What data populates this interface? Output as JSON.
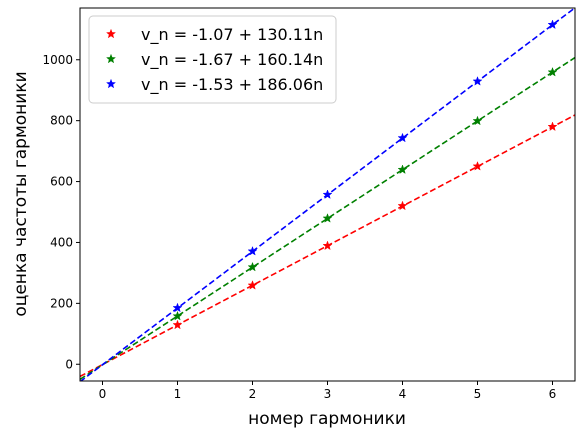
{
  "chart_data": {
    "type": "line",
    "xlabel": "номер гармоники",
    "ylabel": "оценка частоты гармоники",
    "xlim": [
      -0.3,
      6.3
    ],
    "ylim": [
      -55,
      1170
    ],
    "x_ticks": [
      0,
      1,
      2,
      3,
      4,
      5,
      6
    ],
    "y_ticks": [
      0,
      200,
      400,
      600,
      800,
      1000
    ],
    "grid": false,
    "legend_position": "top-left",
    "series": [
      {
        "name": "v_n = -1.07 + 130.11n",
        "color": "#ff0000",
        "intercept": -1.07,
        "slope": 130.11,
        "points": [
          [
            1,
            129
          ],
          [
            2,
            259
          ],
          [
            3,
            389
          ],
          [
            4,
            520
          ],
          [
            5,
            650
          ],
          [
            6,
            780
          ]
        ]
      },
      {
        "name": "v_n = -1.67 + 160.14n",
        "color": "#008000",
        "intercept": -1.67,
        "slope": 160.14,
        "points": [
          [
            1,
            158
          ],
          [
            2,
            319
          ],
          [
            3,
            479
          ],
          [
            4,
            639
          ],
          [
            5,
            799
          ],
          [
            6,
            959
          ]
        ]
      },
      {
        "name": "v_n = -1.53 + 186.06n",
        "color": "#0000ff",
        "intercept": -1.53,
        "slope": 186.06,
        "points": [
          [
            1,
            185
          ],
          [
            2,
            371
          ],
          [
            3,
            557
          ],
          [
            4,
            743
          ],
          [
            5,
            929
          ],
          [
            6,
            1115
          ]
        ]
      }
    ]
  }
}
